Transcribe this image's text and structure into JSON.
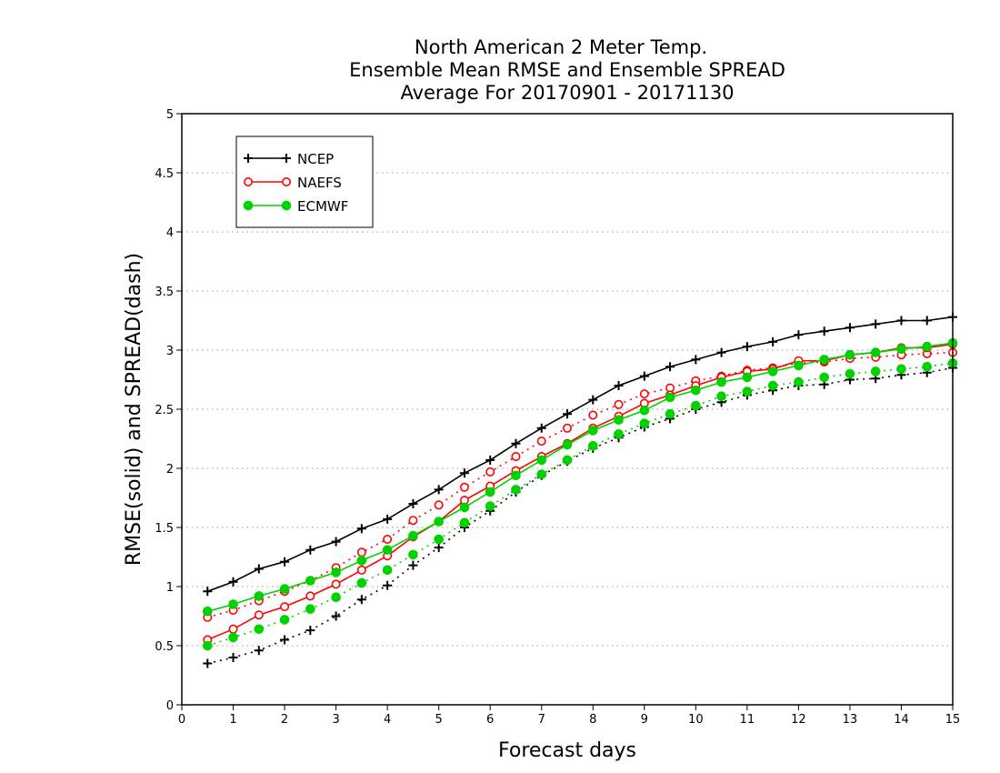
{
  "chart_data": {
    "type": "line",
    "title": [
      "North American 2 Meter Temp.",
      "Ensemble Mean RMSE and Ensemble SPREAD",
      "Average For 20170901 - 20171130"
    ],
    "xlabel": "Forecast days",
    "ylabel": "RMSE(solid) and SPREAD(dash)",
    "xlim": [
      0,
      15
    ],
    "ylim": [
      0,
      5
    ],
    "xticks": [
      0,
      1,
      2,
      3,
      4,
      5,
      6,
      7,
      8,
      9,
      10,
      11,
      12,
      13,
      14,
      15
    ],
    "yticks": [
      0,
      0.5,
      1,
      1.5,
      2,
      2.5,
      3,
      3.5,
      4,
      4.5,
      5
    ],
    "grid": "horizontal dotted",
    "legend_position": "top-left",
    "x": [
      0.5,
      1,
      1.5,
      2,
      2.5,
      3,
      3.5,
      4,
      4.5,
      5,
      5.5,
      6,
      6.5,
      7,
      7.5,
      8,
      8.5,
      9,
      9.5,
      10,
      10.5,
      11,
      11.5,
      12,
      12.5,
      13,
      13.5,
      14,
      14.5,
      15
    ],
    "series": [
      {
        "name": "NCEP",
        "color": "#000000",
        "marker": "plus",
        "rmse": [
          0.96,
          1.04,
          1.15,
          1.21,
          1.31,
          1.38,
          1.49,
          1.57,
          1.7,
          1.82,
          1.96,
          2.07,
          2.21,
          2.34,
          2.46,
          2.58,
          2.7,
          2.78,
          2.86,
          2.92,
          2.98,
          3.03,
          3.07,
          3.13,
          3.16,
          3.19,
          3.22,
          3.25,
          3.25,
          3.28
        ],
        "spread": [
          0.35,
          0.4,
          0.46,
          0.55,
          0.63,
          0.75,
          0.89,
          1.01,
          1.18,
          1.33,
          1.5,
          1.64,
          1.8,
          1.94,
          2.06,
          2.17,
          2.26,
          2.35,
          2.42,
          2.5,
          2.56,
          2.62,
          2.66,
          2.7,
          2.71,
          2.75,
          2.76,
          2.79,
          2.81,
          2.85
        ]
      },
      {
        "name": "NAEFS",
        "color": "#ff0000",
        "marker": "open-circle",
        "rmse": [
          0.55,
          0.64,
          0.76,
          0.83,
          0.92,
          1.02,
          1.14,
          1.26,
          1.42,
          1.55,
          1.73,
          1.85,
          1.98,
          2.1,
          2.21,
          2.34,
          2.44,
          2.55,
          2.62,
          2.7,
          2.77,
          2.82,
          2.84,
          2.91,
          2.91,
          2.96,
          2.98,
          3.02,
          3.02,
          3.05
        ],
        "spread": [
          0.74,
          0.8,
          0.88,
          0.96,
          1.05,
          1.16,
          1.29,
          1.4,
          1.56,
          1.69,
          1.84,
          1.97,
          2.1,
          2.23,
          2.34,
          2.45,
          2.54,
          2.63,
          2.68,
          2.74,
          2.78,
          2.83,
          2.85,
          2.89,
          2.9,
          2.93,
          2.94,
          2.96,
          2.97,
          2.98
        ]
      },
      {
        "name": "ECMWF",
        "color": "#00d200",
        "marker": "filled-circle",
        "rmse": [
          0.79,
          0.85,
          0.92,
          0.98,
          1.05,
          1.12,
          1.22,
          1.31,
          1.43,
          1.55,
          1.67,
          1.8,
          1.94,
          2.07,
          2.2,
          2.32,
          2.41,
          2.49,
          2.6,
          2.66,
          2.73,
          2.77,
          2.82,
          2.87,
          2.92,
          2.96,
          2.98,
          3.01,
          3.03,
          3.06
        ],
        "spread": [
          0.5,
          0.57,
          0.64,
          0.72,
          0.81,
          0.91,
          1.03,
          1.14,
          1.27,
          1.4,
          1.54,
          1.68,
          1.82,
          1.95,
          2.07,
          2.19,
          2.29,
          2.38,
          2.46,
          2.53,
          2.61,
          2.65,
          2.7,
          2.73,
          2.77,
          2.8,
          2.82,
          2.84,
          2.86,
          2.89
        ]
      }
    ]
  }
}
